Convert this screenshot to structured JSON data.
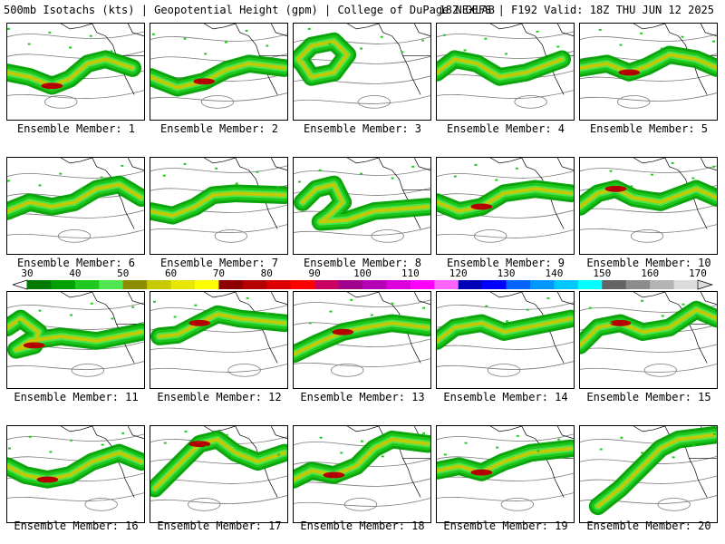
{
  "header": {
    "left": "500mb Isotachs (kts) | Geopotential Height (gpm) | College of DuPage NEXLAB",
    "right": "18Z GEFS | F192 Valid: 18Z THU JUN 12 2025"
  },
  "members": [
    "Ensemble Member: 1",
    "Ensemble Member: 2",
    "Ensemble Member: 3",
    "Ensemble Member: 4",
    "Ensemble Member: 5",
    "Ensemble Member: 6",
    "Ensemble Member: 7",
    "Ensemble Member: 8",
    "Ensemble Member: 9",
    "Ensemble Member: 10",
    "Ensemble Member: 11",
    "Ensemble Member: 12",
    "Ensemble Member: 13",
    "Ensemble Member: 14",
    "Ensemble Member: 15",
    "Ensemble Member: 16",
    "Ensemble Member: 17",
    "Ensemble Member: 18",
    "Ensemble Member: 19",
    "Ensemble Member: 20"
  ],
  "colorbar": {
    "ticks": [
      "30",
      "40",
      "50",
      "60",
      "70",
      "80",
      "90",
      "100",
      "110",
      "120",
      "130",
      "140",
      "150",
      "160",
      "170"
    ],
    "colors": [
      "#007a00",
      "#00a000",
      "#1ec81e",
      "#50e650",
      "#8c8c00",
      "#c8c800",
      "#e6e600",
      "#ffff00",
      "#8c0000",
      "#b40000",
      "#dc0000",
      "#ff0000",
      "#c80064",
      "#a0008c",
      "#b400b4",
      "#dc00dc",
      "#ff00ff",
      "#ff64ff",
      "#0000b4",
      "#0000ff",
      "#0064ff",
      "#0096ff",
      "#00c8ff",
      "#00ffff",
      "#646464",
      "#8c8c8c",
      "#b4b4b4",
      "#dcdcdc"
    ]
  }
}
